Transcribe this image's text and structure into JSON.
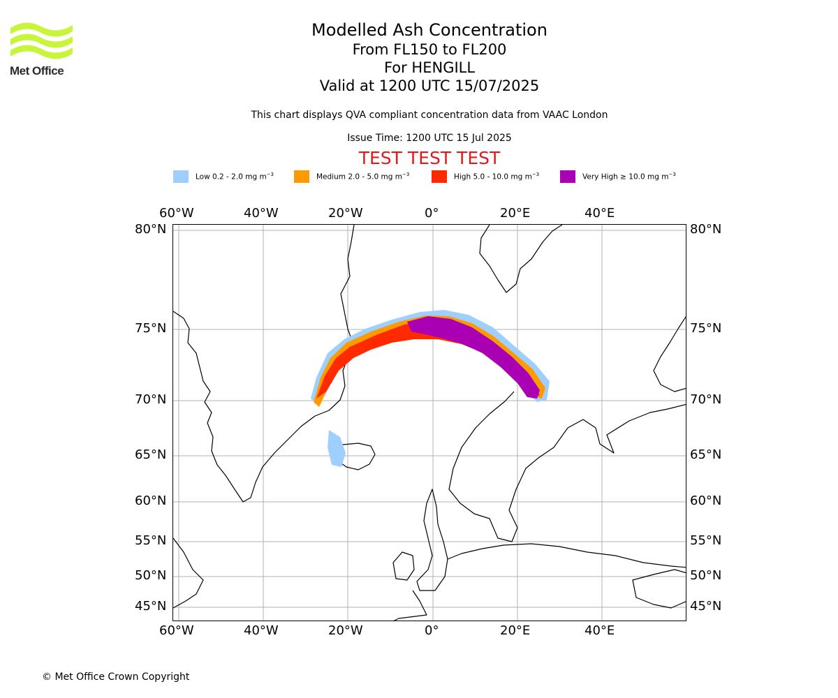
{
  "logo": {
    "text": "Met Office",
    "accent_color": "#c8f53a"
  },
  "title": {
    "main": "Modelled Ash Concentration",
    "levels": "From FL150 to FL200",
    "volcano": "For HENGILL",
    "valid": "Valid at 1200 UTC 15/07/2025"
  },
  "description": "This chart displays QVA compliant concentration data from VAAC London",
  "issue_time": "Issue Time: 1200 UTC 15 Jul 2025",
  "test_banner": "TEST TEST TEST",
  "legend": [
    {
      "label": "Low 0.2 - 2.0 mg m",
      "unit_exp": "−3",
      "color": "#9fcfff"
    },
    {
      "label": "Medium 2.0 - 5.0 mg m",
      "unit_exp": "−3",
      "color": "#ff9b00"
    },
    {
      "label": "High 5.0 - 10.0 mg m",
      "unit_exp": "−3",
      "color": "#ff2a00"
    },
    {
      "label": "Very High  ≥  10.0 mg m",
      "unit_exp": "−3",
      "color": "#aa00b4"
    }
  ],
  "map": {
    "lon_ticks": [
      "60°W",
      "40°W",
      "20°W",
      "0°",
      "20°E",
      "40°E"
    ],
    "lat_ticks": [
      "80°N",
      "75°N",
      "70°N",
      "65°N",
      "60°N",
      "55°N",
      "50°N",
      "45°N"
    ],
    "grid": true,
    "plume_colors": {
      "low": "#9fcfff",
      "medium": "#ff9b00",
      "high": "#ff2a00",
      "very_high": "#aa00b4"
    }
  },
  "copyright": "© Met Office Crown Copyright"
}
